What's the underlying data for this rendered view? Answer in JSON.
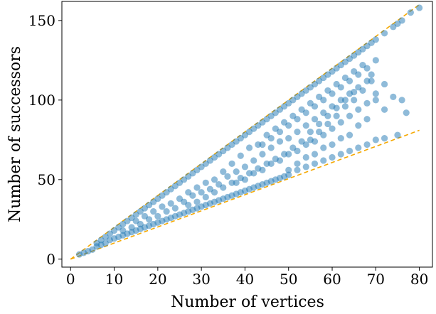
{
  "chart_data": {
    "type": "scatter",
    "xlabel": "Number of vertices",
    "ylabel": "Number of successors",
    "xlim": [
      -2,
      83
    ],
    "ylim": [
      -5,
      162
    ],
    "x_ticks": [
      0,
      10,
      20,
      30,
      40,
      50,
      60,
      70,
      80
    ],
    "y_ticks": [
      0,
      50,
      100,
      150
    ],
    "grid": false,
    "legend": "none",
    "point_color": "#1f77b4",
    "point_alpha": 0.5,
    "line_color": "#f5a800",
    "reference_lines": [
      {
        "style": "dashed",
        "x": [
          0,
          80
        ],
        "y": [
          0,
          160
        ]
      },
      {
        "style": "dashed",
        "x": [
          0,
          80
        ],
        "y": [
          0,
          81
        ]
      }
    ],
    "series": [
      {
        "values_xy": [
          [
            2,
            3
          ],
          [
            3,
            4
          ],
          [
            4,
            5
          ],
          [
            5,
            6
          ],
          [
            6,
            8
          ],
          [
            7,
            9
          ],
          [
            8,
            10
          ],
          [
            9,
            12
          ],
          [
            10,
            13
          ],
          [
            6,
            10
          ],
          [
            7,
            12
          ],
          [
            8,
            14
          ],
          [
            9,
            16
          ],
          [
            10,
            18
          ],
          [
            11,
            20
          ],
          [
            12,
            22
          ],
          [
            13,
            24
          ],
          [
            14,
            26
          ],
          [
            15,
            28
          ],
          [
            16,
            30
          ],
          [
            17,
            32
          ],
          [
            18,
            34
          ],
          [
            19,
            36
          ],
          [
            20,
            38
          ],
          [
            21,
            40
          ],
          [
            22,
            42
          ],
          [
            23,
            44
          ],
          [
            24,
            46
          ],
          [
            25,
            48
          ],
          [
            26,
            50
          ],
          [
            27,
            52
          ],
          [
            28,
            54
          ],
          [
            29,
            56
          ],
          [
            30,
            58
          ],
          [
            31,
            60
          ],
          [
            32,
            62
          ],
          [
            33,
            64
          ],
          [
            34,
            66
          ],
          [
            35,
            68
          ],
          [
            36,
            70
          ],
          [
            37,
            72
          ],
          [
            38,
            74
          ],
          [
            39,
            76
          ],
          [
            40,
            78
          ],
          [
            41,
            80
          ],
          [
            42,
            82
          ],
          [
            43,
            84
          ],
          [
            44,
            86
          ],
          [
            45,
            88
          ],
          [
            46,
            90
          ],
          [
            47,
            92
          ],
          [
            48,
            94
          ],
          [
            49,
            96
          ],
          [
            50,
            98
          ],
          [
            51,
            100
          ],
          [
            52,
            102
          ],
          [
            53,
            104
          ],
          [
            54,
            106
          ],
          [
            55,
            108
          ],
          [
            56,
            110
          ],
          [
            57,
            112
          ],
          [
            58,
            114
          ],
          [
            59,
            116
          ],
          [
            60,
            118
          ],
          [
            61,
            120
          ],
          [
            62,
            122
          ],
          [
            63,
            124
          ],
          [
            64,
            126
          ],
          [
            65,
            128
          ],
          [
            66,
            130
          ],
          [
            67,
            132
          ],
          [
            68,
            134
          ],
          [
            69,
            136
          ],
          [
            70,
            138
          ],
          [
            72,
            142
          ],
          [
            74,
            146
          ],
          [
            75,
            148
          ],
          [
            76,
            150
          ],
          [
            78,
            155
          ],
          [
            80,
            158
          ],
          [
            11,
            14
          ],
          [
            12,
            15
          ],
          [
            13,
            16
          ],
          [
            14,
            17
          ],
          [
            15,
            18
          ],
          [
            16,
            19
          ],
          [
            17,
            20
          ],
          [
            18,
            21
          ],
          [
            19,
            22
          ],
          [
            20,
            23
          ],
          [
            21,
            24
          ],
          [
            22,
            25
          ],
          [
            23,
            26
          ],
          [
            24,
            27
          ],
          [
            25,
            28
          ],
          [
            26,
            29
          ],
          [
            27,
            30
          ],
          [
            28,
            31
          ],
          [
            29,
            32
          ],
          [
            30,
            33
          ],
          [
            31,
            34
          ],
          [
            32,
            35
          ],
          [
            33,
            36
          ],
          [
            34,
            37
          ],
          [
            35,
            38
          ],
          [
            36,
            39
          ],
          [
            37,
            40
          ],
          [
            38,
            41
          ],
          [
            39,
            42
          ],
          [
            40,
            43
          ],
          [
            41,
            44
          ],
          [
            42,
            45
          ],
          [
            43,
            46
          ],
          [
            44,
            47
          ],
          [
            45,
            48
          ],
          [
            46,
            49
          ],
          [
            47,
            50
          ],
          [
            48,
            51
          ],
          [
            49,
            52
          ],
          [
            50,
            53
          ],
          [
            52,
            56
          ],
          [
            54,
            58
          ],
          [
            56,
            60
          ],
          [
            58,
            62
          ],
          [
            60,
            64
          ],
          [
            62,
            66
          ],
          [
            64,
            68
          ],
          [
            66,
            70
          ],
          [
            68,
            72
          ],
          [
            70,
            75
          ],
          [
            72,
            76
          ],
          [
            75,
            78
          ],
          [
            12,
            18
          ],
          [
            14,
            20
          ],
          [
            15,
            24
          ],
          [
            16,
            22
          ],
          [
            17,
            27
          ],
          [
            18,
            25
          ],
          [
            19,
            30
          ],
          [
            20,
            27
          ],
          [
            21,
            33
          ],
          [
            22,
            30
          ],
          [
            23,
            35
          ],
          [
            24,
            32
          ],
          [
            25,
            38
          ],
          [
            26,
            36
          ],
          [
            27,
            42
          ],
          [
            28,
            40
          ],
          [
            29,
            45
          ],
          [
            30,
            42
          ],
          [
            31,
            48
          ],
          [
            32,
            44
          ],
          [
            33,
            50
          ],
          [
            34,
            47
          ],
          [
            35,
            55
          ],
          [
            36,
            52
          ],
          [
            37,
            60
          ],
          [
            38,
            55
          ],
          [
            39,
            65
          ],
          [
            40,
            58
          ],
          [
            41,
            70
          ],
          [
            42,
            62
          ],
          [
            43,
            72
          ],
          [
            44,
            66
          ],
          [
            45,
            78
          ],
          [
            46,
            70
          ],
          [
            47,
            82
          ],
          [
            48,
            74
          ],
          [
            49,
            86
          ],
          [
            50,
            76
          ],
          [
            51,
            90
          ],
          [
            52,
            80
          ],
          [
            53,
            94
          ],
          [
            54,
            84
          ],
          [
            55,
            98
          ],
          [
            56,
            88
          ],
          [
            57,
            102
          ],
          [
            58,
            92
          ],
          [
            59,
            106
          ],
          [
            60,
            96
          ],
          [
            61,
            110
          ],
          [
            62,
            100
          ],
          [
            63,
            114
          ],
          [
            64,
            104
          ],
          [
            65,
            118
          ],
          [
            66,
            108
          ],
          [
            67,
            122
          ],
          [
            68,
            112
          ],
          [
            69,
            116
          ],
          [
            70,
            100
          ],
          [
            38,
            48
          ],
          [
            40,
            50
          ],
          [
            42,
            54
          ],
          [
            44,
            56
          ],
          [
            46,
            60
          ],
          [
            48,
            62
          ],
          [
            50,
            66
          ],
          [
            52,
            68
          ],
          [
            54,
            72
          ],
          [
            56,
            74
          ],
          [
            58,
            78
          ],
          [
            60,
            82
          ],
          [
            62,
            86
          ],
          [
            64,
            90
          ],
          [
            66,
            94
          ],
          [
            68,
            98
          ],
          [
            70,
            104
          ],
          [
            72,
            94
          ],
          [
            44,
            72
          ],
          [
            46,
            76
          ],
          [
            48,
            80
          ],
          [
            50,
            84
          ],
          [
            52,
            88
          ],
          [
            54,
            92
          ],
          [
            56,
            96
          ],
          [
            58,
            100
          ],
          [
            60,
            104
          ],
          [
            62,
            108
          ],
          [
            64,
            112
          ],
          [
            66,
            116
          ],
          [
            68,
            120
          ],
          [
            70,
            125
          ],
          [
            72,
            110
          ],
          [
            74,
            102
          ],
          [
            76,
            100
          ],
          [
            77,
            92
          ],
          [
            50,
            56
          ],
          [
            52,
            60
          ],
          [
            54,
            64
          ],
          [
            56,
            66
          ],
          [
            58,
            70
          ],
          [
            60,
            72
          ],
          [
            62,
            76
          ],
          [
            64,
            78
          ],
          [
            66,
            84
          ],
          [
            68,
            88
          ],
          [
            55,
            75
          ],
          [
            57,
            80
          ],
          [
            59,
            85
          ],
          [
            61,
            90
          ],
          [
            63,
            96
          ],
          [
            65,
            100
          ],
          [
            67,
            106
          ],
          [
            69,
            112
          ],
          [
            27,
            34
          ],
          [
            29,
            36
          ],
          [
            31,
            39
          ],
          [
            33,
            42
          ],
          [
            35,
            45
          ],
          [
            37,
            48
          ],
          [
            39,
            51
          ],
          [
            41,
            54
          ],
          [
            43,
            57
          ],
          [
            45,
            60
          ],
          [
            47,
            63
          ],
          [
            49,
            66
          ],
          [
            51,
            70
          ],
          [
            53,
            74
          ],
          [
            55,
            80
          ],
          [
            57,
            85
          ],
          [
            59,
            90
          ],
          [
            61,
            95
          ],
          [
            63,
            100
          ],
          [
            65,
            105
          ]
        ]
      }
    ]
  }
}
